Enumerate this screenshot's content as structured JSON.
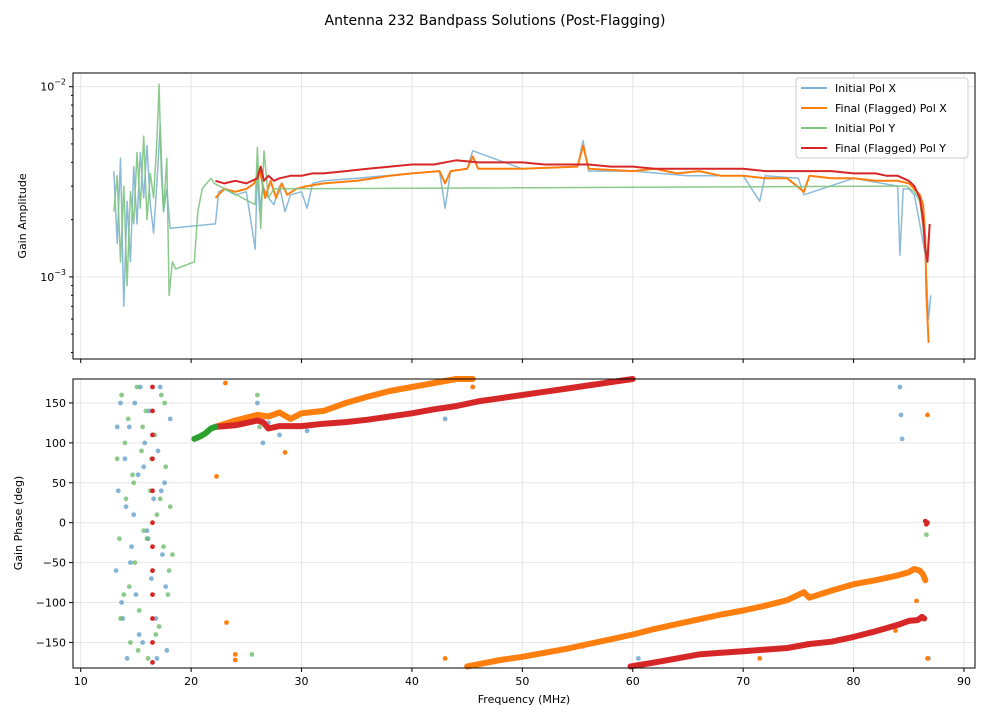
{
  "figure": {
    "title": "Antenna 232 Bandpass Solutions (Post-Flagging)"
  },
  "colors": {
    "initial_x": "#7fb2d5",
    "final_x": "#ff7f0e",
    "initial_y": "#80c480",
    "final_y": "#d62728",
    "initial_x_dot": "#5b9bc8",
    "initial_y_dot": "#67b867",
    "grid": "#e6e6e6",
    "axis": "#000000"
  },
  "chart_data": [
    {
      "type": "line",
      "id": "amplitude",
      "xlabel": "Frequency (MHz)",
      "ylabel": "Gain Amplitude",
      "yscale": "log",
      "xlim": [
        9.3,
        91
      ],
      "ylim": [
        0.00037,
        0.0118
      ],
      "yticks": [
        {
          "value": 0.001,
          "base": "10",
          "exp": "−3"
        },
        {
          "value": 0.01,
          "base": "10",
          "exp": "−2"
        }
      ],
      "legend_position": "top-right",
      "legend": [
        "Initial Pol X",
        "Final (Flagged) Pol X",
        "Initial Pol Y",
        "Final (Flagged) Pol Y"
      ],
      "series": [
        {
          "name": "Initial Pol X",
          "x": [
            13.0,
            13.3,
            13.6,
            13.9,
            14.2,
            14.5,
            14.8,
            15.1,
            15.4,
            15.7,
            16.0,
            16.3,
            16.6,
            16.9,
            17.2,
            17.5,
            17.8,
            18.1,
            22.2,
            22.5,
            23,
            24,
            25,
            25.8,
            26,
            26.2,
            26.5,
            27,
            27.5,
            28,
            28.5,
            29,
            30,
            30.5,
            31,
            32,
            35,
            40,
            42.5,
            43,
            43.5,
            45,
            45.5,
            50,
            55,
            55.5,
            56,
            60,
            65,
            70,
            71.5,
            72,
            75,
            75.5,
            80,
            84,
            84.2,
            84.5,
            85,
            85.5,
            86,
            86.5,
            86.8,
            87.0
          ],
          "y": [
            0.0036,
            0.0015,
            0.0042,
            0.0007,
            0.0025,
            0.0012,
            0.0038,
            0.0019,
            0.0045,
            0.0026,
            0.0049,
            0.0024,
            0.0017,
            0.0031,
            0.0063,
            0.0022,
            0.0029,
            0.0018,
            0.0019,
            0.0028,
            0.0029,
            0.0027,
            0.0028,
            0.0014,
            0.0038,
            0.0022,
            0.003,
            0.0026,
            0.0024,
            0.003,
            0.0022,
            0.0027,
            0.0028,
            0.0023,
            0.0031,
            0.0032,
            0.0033,
            0.0035,
            0.0036,
            0.0023,
            0.0036,
            0.0037,
            0.0046,
            0.0037,
            0.0038,
            0.0052,
            0.0036,
            0.0036,
            0.0034,
            0.0034,
            0.0025,
            0.0034,
            0.0033,
            0.0027,
            0.0033,
            0.003,
            0.0013,
            0.0029,
            0.0029,
            0.0027,
            0.0019,
            0.0013,
            0.0006,
            0.0008
          ]
        },
        {
          "name": "Final (Flagged) Pol X",
          "x": [
            22.2,
            23,
            24,
            25,
            25.7,
            26.2,
            26.7,
            27.2,
            27.7,
            28.2,
            28.7,
            29.5,
            30.5,
            32,
            35,
            38,
            40,
            42.5,
            43,
            43.5,
            45,
            45.5,
            46,
            50,
            55,
            55.5,
            56,
            60,
            62,
            64,
            66,
            68,
            70,
            72,
            74,
            75.5,
            76,
            78,
            80,
            82,
            84,
            85,
            85.5,
            86,
            86.3,
            86.5,
            86.6,
            86.8
          ],
          "y": [
            0.0026,
            0.0029,
            0.0028,
            0.0029,
            0.0031,
            0.0037,
            0.0026,
            0.0032,
            0.0026,
            0.0031,
            0.0027,
            0.0029,
            0.003,
            0.0031,
            0.0032,
            0.0034,
            0.0035,
            0.0036,
            0.0031,
            0.0036,
            0.0037,
            0.0043,
            0.0037,
            0.0037,
            0.0038,
            0.0049,
            0.0037,
            0.0036,
            0.0037,
            0.0035,
            0.0036,
            0.0034,
            0.0034,
            0.0033,
            0.0033,
            0.0028,
            0.0034,
            0.0033,
            0.0033,
            0.0032,
            0.0032,
            0.0031,
            0.0029,
            0.0027,
            0.0024,
            0.0016,
            0.0008,
            0.00045
          ]
        },
        {
          "name": "Initial Pol Y",
          "x": [
            13.0,
            13.3,
            13.6,
            13.9,
            14.2,
            14.5,
            14.8,
            15.1,
            15.4,
            15.7,
            16.0,
            16.3,
            16.6,
            16.9,
            17.1,
            17.3,
            17.5,
            17.8,
            18.0,
            18.3,
            18.6,
            20.3,
            20.6,
            21,
            21.4,
            21.8,
            22.1,
            25.8,
            26.0,
            26.3,
            26.6,
            27,
            27.5,
            84.8,
            85.5,
            86,
            86.3,
            86.6,
            86.9
          ],
          "y": [
            0.0022,
            0.0034,
            0.0012,
            0.003,
            0.0009,
            0.0028,
            0.0019,
            0.0045,
            0.0023,
            0.0055,
            0.002,
            0.0035,
            0.0026,
            0.0052,
            0.0103,
            0.0035,
            0.0022,
            0.0042,
            0.0008,
            0.0012,
            0.0011,
            0.0012,
            0.0022,
            0.0029,
            0.0031,
            0.0033,
            0.0031,
            0.0024,
            0.0048,
            0.0018,
            0.0046,
            0.0026,
            0.0029,
            0.003,
            0.0028,
            0.0025,
            0.0018,
            0.0012,
            0.0019
          ]
        },
        {
          "name": "Final (Flagged) Pol Y",
          "x": [
            22.2,
            23,
            24,
            25,
            26,
            26.3,
            26.6,
            27,
            27.5,
            28,
            29,
            30,
            31,
            32,
            34,
            36,
            38,
            40,
            42,
            44,
            46,
            48,
            50,
            52,
            54,
            56,
            58,
            60,
            62,
            64,
            66,
            68,
            70,
            72,
            74,
            76,
            78,
            80,
            82,
            83,
            84,
            84.5,
            85,
            85.5,
            86,
            86.3,
            86.5,
            86.7,
            86.9
          ],
          "y": [
            0.0032,
            0.0031,
            0.0032,
            0.0031,
            0.0033,
            0.0038,
            0.0032,
            0.0034,
            0.0032,
            0.0033,
            0.0034,
            0.0034,
            0.0035,
            0.0035,
            0.0036,
            0.0037,
            0.0038,
            0.0039,
            0.0039,
            0.0041,
            0.004,
            0.004,
            0.004,
            0.0039,
            0.0039,
            0.0039,
            0.0038,
            0.0038,
            0.0037,
            0.0037,
            0.0037,
            0.0037,
            0.0037,
            0.0036,
            0.0036,
            0.0036,
            0.0036,
            0.0035,
            0.0035,
            0.0034,
            0.0034,
            0.0033,
            0.0032,
            0.003,
            0.0026,
            0.002,
            0.0014,
            0.0012,
            0.0019
          ]
        }
      ]
    },
    {
      "type": "scatter",
      "id": "phase",
      "xlabel": "Frequency (MHz)",
      "ylabel": "Gain Phase (deg)",
      "xlim": [
        9.3,
        91
      ],
      "ylim": [
        -182,
        180
      ],
      "xticks": [
        10,
        20,
        30,
        40,
        50,
        60,
        70,
        80,
        90
      ],
      "yticks": [
        -150,
        -100,
        -50,
        0,
        50,
        100,
        150
      ],
      "series": [
        {
          "name": "Initial Pol X",
          "x": [
            13.2,
            13.4,
            13.6,
            13.8,
            14.0,
            14.2,
            14.4,
            14.6,
            14.8,
            15.0,
            15.2,
            15.4,
            15.6,
            15.8,
            16.0,
            16.2,
            16.4,
            16.6,
            16.8,
            17.0,
            17.2,
            17.4,
            17.6,
            17.8,
            13.3,
            13.7,
            14.1,
            14.5,
            14.9,
            15.3,
            15.7,
            16.1,
            16.5,
            16.9,
            17.3,
            17.7,
            18.1,
            26,
            26.5,
            27,
            28,
            30.5,
            43,
            45.5,
            55.5,
            60.5,
            84.2,
            84.3,
            84.4,
            86.8
          ],
          "y": [
            -60,
            40,
            150,
            -120,
            80,
            -170,
            120,
            -30,
            10,
            -90,
            60,
            170,
            -150,
            100,
            -10,
            140,
            -70,
            30,
            -120,
            90,
            170,
            -40,
            50,
            -160,
            120,
            -100,
            20,
            -50,
            150,
            -140,
            70,
            -20,
            110,
            -170,
            40,
            -80,
            130,
            150,
            100,
            125,
            110,
            115,
            130,
            170,
            -155,
            -170,
            170,
            135,
            105,
            -170
          ]
        },
        {
          "name": "Initial Pol Y",
          "x": [
            13.3,
            13.5,
            13.7,
            13.9,
            14.1,
            14.3,
            14.5,
            14.7,
            14.9,
            15.1,
            15.3,
            15.5,
            15.7,
            15.9,
            16.1,
            16.3,
            16.5,
            16.7,
            16.9,
            17.1,
            17.3,
            17.5,
            17.7,
            17.9,
            18.1,
            18.3,
            13.6,
            14.0,
            14.4,
            14.8,
            15.2,
            15.6,
            16.0,
            16.4,
            16.8,
            17.2,
            17.6,
            18.0,
            25.5,
            26,
            26.2,
            86.6
          ],
          "y": [
            80,
            -20,
            160,
            -90,
            30,
            130,
            -150,
            60,
            -50,
            170,
            -110,
            90,
            -10,
            140,
            -170,
            40,
            -60,
            110,
            10,
            -130,
            160,
            -30,
            70,
            -90,
            20,
            -40,
            -120,
            100,
            -80,
            50,
            -160,
            120,
            -20,
            80,
            -140,
            30,
            150,
            -60,
            -165,
            160,
            120,
            -15
          ]
        },
        {
          "name": "Final (Flagged) Pol X",
          "line": true,
          "x": [
            22.2,
            24,
            26,
            27,
            28,
            29,
            30,
            32,
            34,
            36,
            38,
            40,
            42,
            44,
            45.5
          ],
          "y": [
            120,
            128,
            135,
            133,
            138,
            130,
            137,
            140,
            150,
            158,
            165,
            170,
            175,
            180,
            180
          ]
        },
        {
          "name": "Final (Flagged) Pol X (wrapped)",
          "line": true,
          "x": [
            45.0,
            48,
            50,
            52,
            54,
            56,
            58,
            60,
            62,
            64,
            66,
            68,
            70,
            72,
            74,
            75.5,
            76,
            78,
            80,
            82,
            84,
            85,
            85.5,
            86,
            86.3,
            86.5
          ],
          "y": [
            -180,
            -172,
            -168,
            -163,
            -158,
            -152,
            -146,
            -140,
            -133,
            -127,
            -121,
            -115,
            -110,
            -104,
            -97,
            -87,
            -94,
            -85,
            -77,
            -72,
            -66,
            -62,
            -58,
            -60,
            -65,
            -72
          ]
        },
        {
          "name": "Final (Flagged) Pol X (outliers)",
          "x": [
            22.3,
            23.1,
            23.2,
            24,
            24,
            28.5,
            43,
            45.5,
            71.5,
            83.8,
            86.7,
            86.7,
            85.7
          ],
          "y": [
            58,
            175,
            -125,
            -165,
            -172,
            88,
            -170,
            170,
            -170,
            -135,
            135,
            -170,
            -98
          ]
        },
        {
          "name": "Final (Flagged) Pol Y",
          "line": true,
          "x": [
            22.2,
            24,
            26,
            26.5,
            27,
            28,
            30,
            32,
            34,
            36,
            38,
            40,
            42,
            44,
            46,
            48,
            50,
            52,
            54,
            56,
            58,
            60
          ],
          "y": [
            120,
            122,
            128,
            126,
            118,
            121,
            121,
            124,
            126,
            129,
            133,
            137,
            142,
            146,
            152,
            156,
            160,
            164,
            168,
            172,
            176,
            180
          ]
        },
        {
          "name": "Final (Flagged) Pol Y (wrapped)",
          "line": true,
          "x": [
            59.8,
            62,
            64,
            66,
            68,
            70,
            72,
            74,
            76,
            78,
            80,
            82,
            84,
            85,
            85.8,
            86.2,
            86.4
          ],
          "y": [
            -180,
            -175,
            -170,
            -165,
            -163,
            -161,
            -159,
            -157,
            -152,
            -149,
            -143,
            -136,
            -128,
            -123,
            -122,
            -118,
            -120
          ]
        },
        {
          "name": "Final (Flagged) Pol Y (outliers)",
          "x": [
            16.5,
            16.5,
            16.5,
            16.5,
            16.5,
            16.5,
            16.5,
            16.5,
            16.5,
            16.5,
            16.5,
            16.5,
            86.5,
            86.6,
            86.7
          ],
          "y": [
            170,
            140,
            110,
            80,
            40,
            0,
            -30,
            -60,
            -90,
            -120,
            -150,
            -175,
            2,
            -2,
            0
          ]
        },
        {
          "name": "Initial Pol Y (green run)",
          "line": true,
          "x": [
            20.3,
            20.8,
            21.3,
            21.8,
            22.2
          ],
          "y": [
            105,
            108,
            112,
            118,
            120
          ]
        }
      ]
    }
  ]
}
